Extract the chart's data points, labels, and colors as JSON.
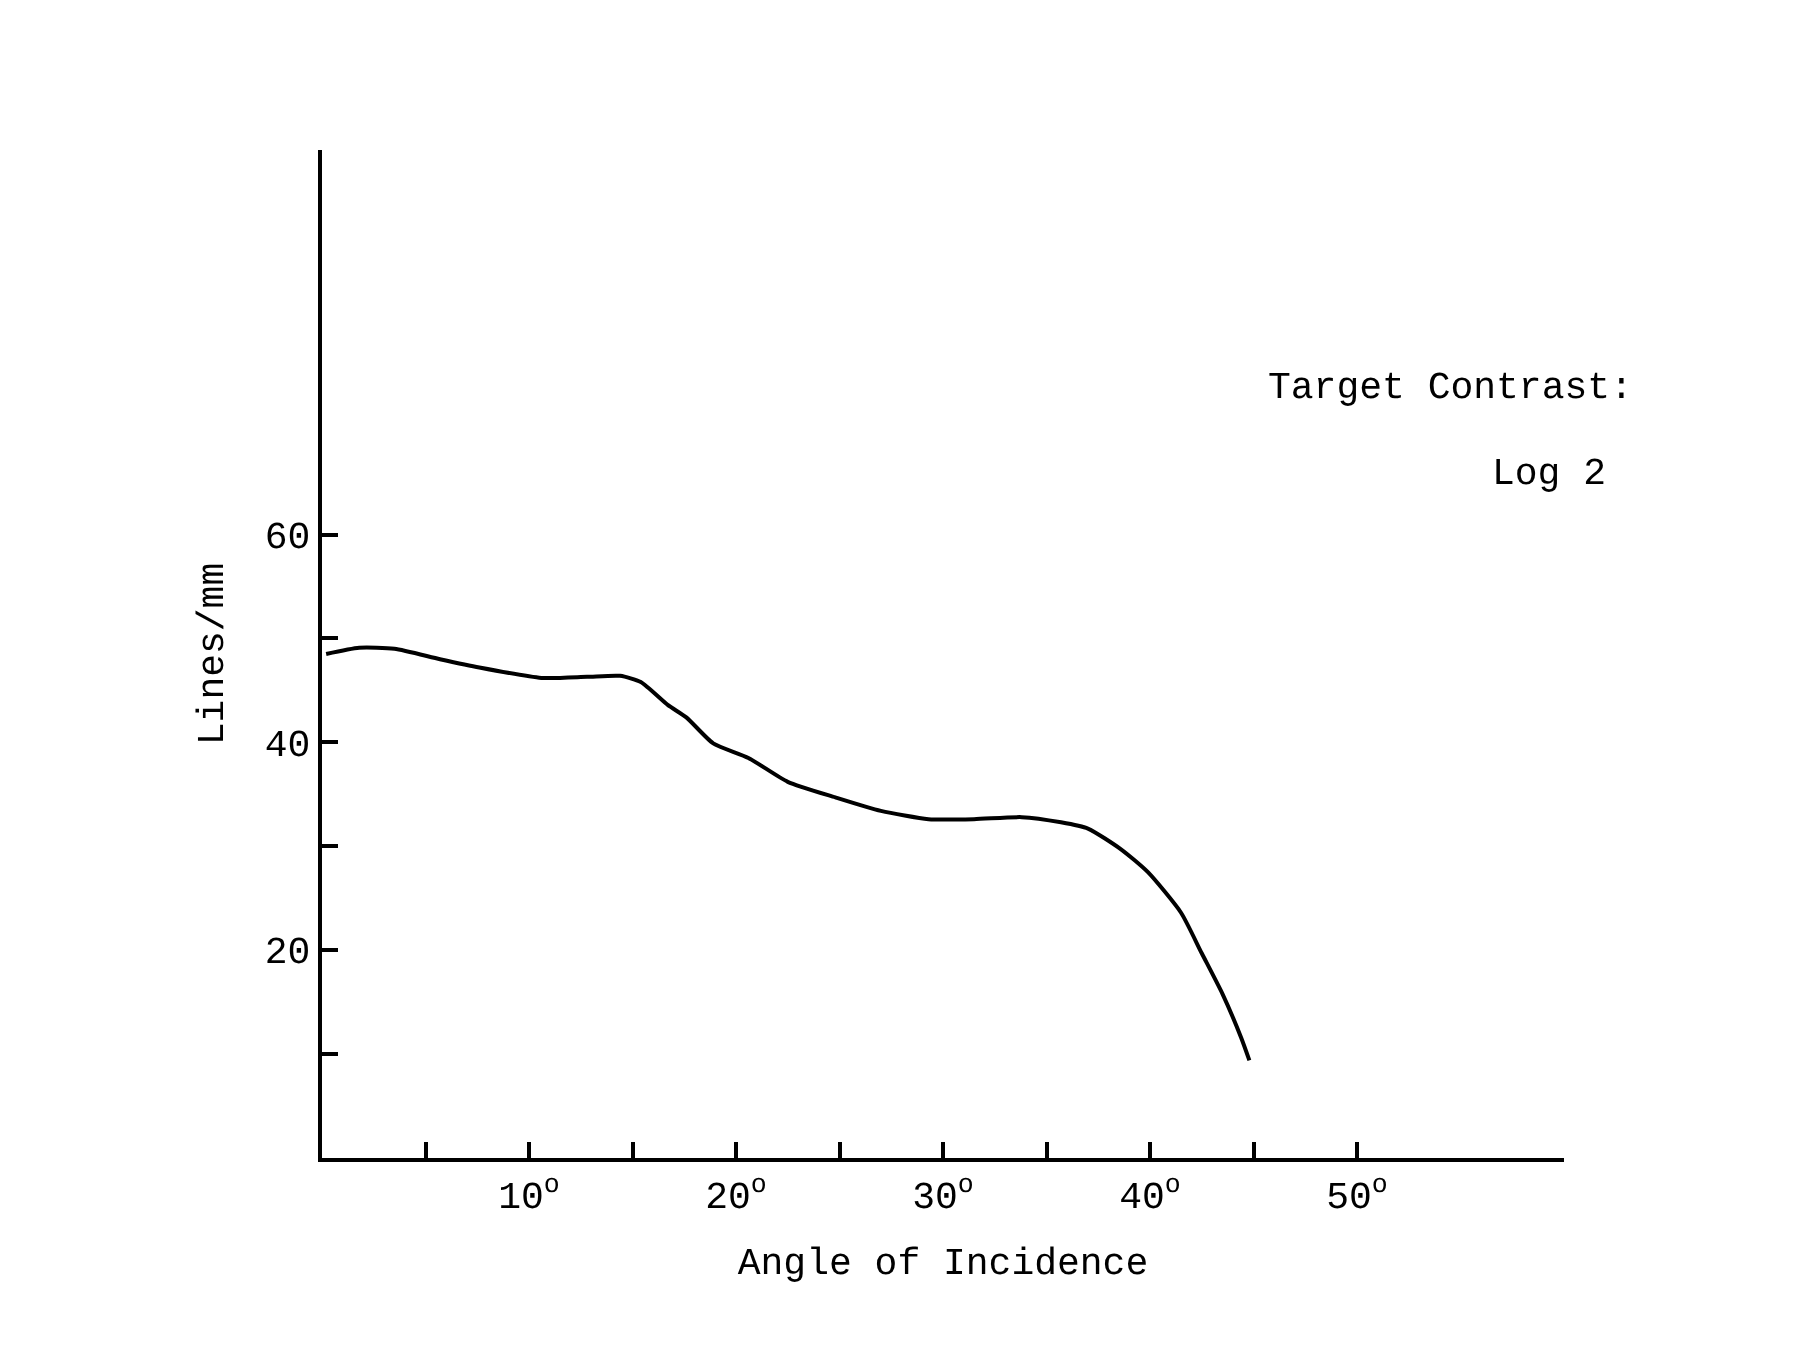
{
  "chart_data": {
    "type": "line",
    "xlabel": "Angle of Incidence",
    "ylabel": "Lines/mm",
    "annotations": [
      "Target Contrast:",
      "Log 2"
    ],
    "xlim": [
      0,
      60
    ],
    "ylim": [
      0,
      97
    ],
    "xticks": [
      {
        "value": 5,
        "label": null
      },
      {
        "value": 10,
        "label": "10$^{o}$"
      },
      {
        "value": 15,
        "label": null
      },
      {
        "value": 20,
        "label": "20$^{o}$"
      },
      {
        "value": 25,
        "label": null
      },
      {
        "value": 30,
        "label": "30$^{o}$"
      },
      {
        "value": 35,
        "label": null
      },
      {
        "value": 40,
        "label": "40$^{o}$"
      },
      {
        "value": 45,
        "label": null
      },
      {
        "value": 50,
        "label": "50$^{o}$"
      }
    ],
    "yticks": [
      {
        "value": 10,
        "label": null
      },
      20,
      {
        "value": 30,
        "label": null
      },
      40,
      {
        "value": 50,
        "label": null
      },
      60
    ],
    "marker": "none",
    "line_style": "solid",
    "x": [
      0.2,
      1.8,
      3.5,
      5.7,
      7.6,
      10.6,
      12.8,
      14.4,
      15.4,
      16.7,
      17.6,
      18.9,
      20.6,
      22.5,
      24.8,
      27.0,
      29.3,
      31.5,
      33.8,
      35.7,
      37.0,
      38.6,
      39.9,
      41.5,
      42.5,
      43.5,
      44.4,
      44.8
    ],
    "series": [
      {
        "color": "#000000",
        "values": [
          48.5,
          49.1,
          49.0,
          48.0,
          47.2,
          46.2,
          46.3,
          46.4,
          45.8,
          43.6,
          42.4,
          39.9,
          38.5,
          36.2,
          34.7,
          33.4,
          32.6,
          32.6,
          32.8,
          32.3,
          31.7,
          29.7,
          27.5,
          23.6,
          19.7,
          15.8,
          11.6,
          9.4
        ]
      }
    ]
  }
}
